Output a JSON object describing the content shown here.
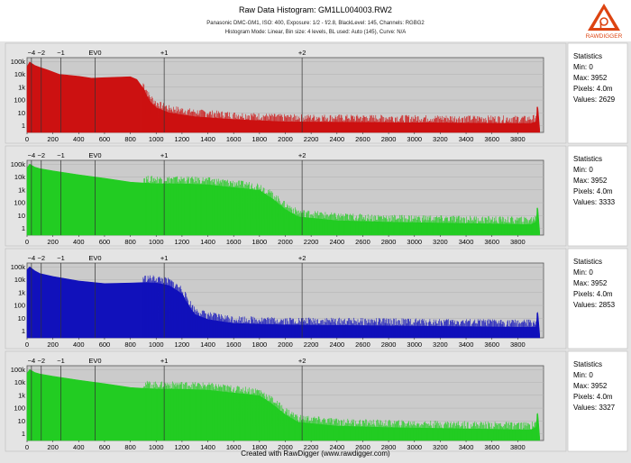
{
  "header": {
    "title": "Raw Data Histogram: GM1LL004003.RW2",
    "info_line1": "Panasonic DMC-GM1, ISO: 400, Exposure: 1/2 - f/2.8, BlackLevel: 145, Channels: RGBG2",
    "info_line2": "Histogram Mode: Linear, Bin size: 4 levels, BL used: Auto (145), Curve: N/A",
    "logo_text": "RAWDIGGER"
  },
  "footer": {
    "text": "Created with RawDigger (www.rawdigger.com)"
  },
  "chart_data": [
    {
      "type": "area",
      "channel": "R",
      "color": "#cc1111",
      "x_ticks": [
        0,
        200,
        400,
        600,
        800,
        1000,
        1200,
        1400,
        1600,
        1800,
        2000,
        2200,
        2400,
        2600,
        2800,
        3000,
        3200,
        3400,
        3600,
        3800
      ],
      "y_ticks": [
        1,
        10,
        100,
        "1k",
        "10k",
        "100k"
      ],
      "y_scale": "log",
      "xlim": [
        0,
        4000
      ],
      "ylim": [
        0.3,
        200000
      ],
      "ev_labels": [
        {
          "label": "−4",
          "x": 34
        },
        {
          "label": "−2",
          "x": 110
        },
        {
          "label": "−1",
          "x": 262
        },
        {
          "label": "EV0",
          "x": 527
        },
        {
          "label": "+1",
          "x": 1062
        },
        {
          "label": "+2",
          "x": 2130
        }
      ],
      "profile": [
        [
          0,
          40000
        ],
        [
          20,
          90000
        ],
        [
          60,
          50000
        ],
        [
          100,
          35000
        ],
        [
          160,
          22000
        ],
        [
          250,
          10000
        ],
        [
          300,
          9000
        ],
        [
          400,
          7000
        ],
        [
          500,
          5000
        ],
        [
          600,
          5500
        ],
        [
          700,
          6000
        ],
        [
          800,
          6500
        ],
        [
          850,
          4000
        ],
        [
          900,
          800
        ],
        [
          950,
          80
        ],
        [
          1000,
          25
        ],
        [
          1100,
          10
        ],
        [
          1300,
          5
        ],
        [
          1600,
          3
        ],
        [
          2000,
          2
        ],
        [
          3900,
          1.5
        ],
        [
          3940,
          2
        ],
        [
          3955,
          30
        ],
        [
          3960,
          8
        ],
        [
          3970,
          0.5
        ]
      ],
      "statistics": {
        "heading": "Statistics",
        "min": "Min: 0",
        "max": "Max: 3952",
        "pixels": "Pixels: 4.0m",
        "values": "Values: 2629"
      }
    },
    {
      "type": "area",
      "channel": "G",
      "color": "#22cc22",
      "x_ticks": [
        0,
        200,
        400,
        600,
        800,
        1000,
        1200,
        1400,
        1600,
        1800,
        2000,
        2200,
        2400,
        2600,
        2800,
        3000,
        3200,
        3400,
        3600,
        3800
      ],
      "y_ticks": [
        1,
        10,
        100,
        "1k",
        "10k",
        "100k"
      ],
      "y_scale": "log",
      "xlim": [
        0,
        4000
      ],
      "ylim": [
        0.3,
        200000
      ],
      "ev_labels": [
        {
          "label": "−4",
          "x": 34
        },
        {
          "label": "−2",
          "x": 110
        },
        {
          "label": "−1",
          "x": 262
        },
        {
          "label": "EV0",
          "x": 527
        },
        {
          "label": "+1",
          "x": 1062
        },
        {
          "label": "+2",
          "x": 2130
        }
      ],
      "profile": [
        [
          0,
          50000
        ],
        [
          20,
          100000
        ],
        [
          60,
          60000
        ],
        [
          100,
          45000
        ],
        [
          200,
          30000
        ],
        [
          400,
          15000
        ],
        [
          600,
          8000
        ],
        [
          800,
          4000
        ],
        [
          1000,
          3000
        ],
        [
          1200,
          3000
        ],
        [
          1400,
          2500
        ],
        [
          1600,
          1500
        ],
        [
          1700,
          1200
        ],
        [
          1800,
          900
        ],
        [
          1900,
          200
        ],
        [
          2000,
          30
        ],
        [
          2100,
          8
        ],
        [
          2400,
          4
        ],
        [
          2800,
          3
        ],
        [
          3900,
          2
        ],
        [
          3940,
          3
        ],
        [
          3955,
          40
        ],
        [
          3960,
          10
        ],
        [
          3970,
          0.5
        ]
      ],
      "statistics": {
        "heading": "Statistics",
        "min": "Min: 0",
        "max": "Max: 3952",
        "pixels": "Pixels: 4.0m",
        "values": "Values: 3333"
      }
    },
    {
      "type": "area",
      "channel": "B",
      "color": "#1111bb",
      "x_ticks": [
        0,
        200,
        400,
        600,
        800,
        1000,
        1200,
        1400,
        1600,
        1800,
        2000,
        2200,
        2400,
        2600,
        2800,
        3000,
        3200,
        3400,
        3600,
        3800
      ],
      "y_ticks": [
        1,
        10,
        100,
        "1k",
        "10k",
        "100k"
      ],
      "y_scale": "log",
      "xlim": [
        0,
        4000
      ],
      "ylim": [
        0.3,
        200000
      ],
      "ev_labels": [
        {
          "label": "−4",
          "x": 34
        },
        {
          "label": "−2",
          "x": 110
        },
        {
          "label": "−1",
          "x": 262
        },
        {
          "label": "EV0",
          "x": 527
        },
        {
          "label": "+1",
          "x": 1062
        },
        {
          "label": "+2",
          "x": 2130
        }
      ],
      "profile": [
        [
          0,
          60000
        ],
        [
          20,
          100000
        ],
        [
          60,
          50000
        ],
        [
          100,
          30000
        ],
        [
          200,
          18000
        ],
        [
          400,
          8000
        ],
        [
          600,
          5000
        ],
        [
          800,
          5500
        ],
        [
          900,
          6000
        ],
        [
          1000,
          5500
        ],
        [
          1100,
          3500
        ],
        [
          1200,
          800
        ],
        [
          1250,
          100
        ],
        [
          1300,
          20
        ],
        [
          1400,
          8
        ],
        [
          1600,
          4
        ],
        [
          2000,
          3
        ],
        [
          3900,
          2
        ],
        [
          3940,
          2
        ],
        [
          3955,
          30
        ],
        [
          3960,
          8
        ],
        [
          3970,
          0.5
        ]
      ],
      "statistics": {
        "heading": "Statistics",
        "min": "Min: 0",
        "max": "Max: 3952",
        "pixels": "Pixels: 4.0m",
        "values": "Values: 2853"
      }
    },
    {
      "type": "area",
      "channel": "G2",
      "color": "#22cc22",
      "x_ticks": [
        0,
        200,
        400,
        600,
        800,
        1000,
        1200,
        1400,
        1600,
        1800,
        2000,
        2200,
        2400,
        2600,
        2800,
        3000,
        3200,
        3400,
        3600,
        3800
      ],
      "y_ticks": [
        1,
        10,
        100,
        "1k",
        "10k",
        "100k"
      ],
      "y_scale": "log",
      "xlim": [
        0,
        4000
      ],
      "ylim": [
        0.3,
        200000
      ],
      "ev_labels": [
        {
          "label": "−4",
          "x": 34
        },
        {
          "label": "−2",
          "x": 110
        },
        {
          "label": "−1",
          "x": 262
        },
        {
          "label": "EV0",
          "x": 527
        },
        {
          "label": "+1",
          "x": 1062
        },
        {
          "label": "+2",
          "x": 2130
        }
      ],
      "profile": [
        [
          0,
          50000
        ],
        [
          20,
          100000
        ],
        [
          60,
          60000
        ],
        [
          100,
          45000
        ],
        [
          200,
          30000
        ],
        [
          400,
          15000
        ],
        [
          600,
          8000
        ],
        [
          800,
          4000
        ],
        [
          1000,
          3000
        ],
        [
          1200,
          3000
        ],
        [
          1400,
          2500
        ],
        [
          1600,
          1500
        ],
        [
          1700,
          1200
        ],
        [
          1800,
          900
        ],
        [
          1900,
          200
        ],
        [
          2000,
          30
        ],
        [
          2100,
          8
        ],
        [
          2400,
          4
        ],
        [
          2800,
          3
        ],
        [
          3900,
          2
        ],
        [
          3940,
          3
        ],
        [
          3955,
          40
        ],
        [
          3960,
          10
        ],
        [
          3970,
          0.5
        ]
      ],
      "statistics": {
        "heading": "Statistics",
        "min": "Min: 0",
        "max": "Max: 3952",
        "pixels": "Pixels: 4.0m",
        "values": "Values: 3327"
      }
    }
  ]
}
